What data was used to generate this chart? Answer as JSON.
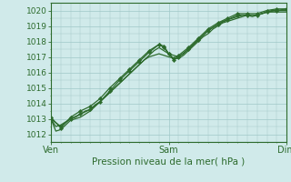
{
  "title": "",
  "xlabel": "Pression niveau de la mer( hPa )",
  "bg_color": "#d0eaea",
  "grid_color": "#a0c8c8",
  "line_color": "#2d6b2d",
  "marker_color": "#2d6b2d",
  "ylim": [
    1011.5,
    1020.5
  ],
  "xlim": [
    0,
    48
  ],
  "yticks": [
    1012,
    1013,
    1014,
    1015,
    1016,
    1017,
    1018,
    1019,
    1020
  ],
  "xtick_positions": [
    0,
    24,
    48
  ],
  "xtick_labels": [
    "Ven",
    "Sam",
    "Dim"
  ],
  "line1_x": [
    0,
    1,
    2,
    3,
    4,
    5,
    6,
    7,
    8,
    9,
    10,
    11,
    12,
    13,
    14,
    15,
    16,
    17,
    18,
    19,
    20,
    21,
    22,
    23,
    24,
    25,
    26,
    27,
    28,
    29,
    30,
    31,
    32,
    33,
    34,
    35,
    36,
    37,
    38,
    39,
    40,
    41,
    42,
    43,
    44,
    45,
    46,
    47,
    48
  ],
  "line1_y": [
    1013.0,
    1012.5,
    1012.6,
    1012.8,
    1013.0,
    1013.1,
    1013.3,
    1013.5,
    1013.6,
    1013.9,
    1014.1,
    1014.4,
    1014.7,
    1015.0,
    1015.3,
    1015.6,
    1015.9,
    1016.2,
    1016.5,
    1016.8,
    1017.1,
    1017.4,
    1017.6,
    1017.4,
    1017.2,
    1017.1,
    1017.0,
    1017.2,
    1017.5,
    1017.8,
    1018.1,
    1018.4,
    1018.7,
    1018.9,
    1019.1,
    1019.3,
    1019.4,
    1019.5,
    1019.6,
    1019.7,
    1019.7,
    1019.6,
    1019.7,
    1019.8,
    1019.9,
    1020.0,
    1020.0,
    1020.0,
    1020.0
  ],
  "line2_x": [
    0,
    1,
    2,
    3,
    4,
    5,
    6,
    7,
    8,
    9,
    10,
    11,
    12,
    13,
    14,
    15,
    16,
    17,
    18,
    19,
    20,
    21,
    22,
    23,
    24,
    25,
    26,
    27,
    28,
    29,
    30,
    31,
    32,
    33,
    34,
    35,
    36,
    37,
    38,
    39,
    40,
    41,
    42,
    43,
    44,
    45,
    46,
    47,
    48
  ],
  "line2_y": [
    1013.0,
    1012.2,
    1012.3,
    1012.6,
    1012.9,
    1013.0,
    1013.1,
    1013.3,
    1013.5,
    1013.8,
    1014.1,
    1014.4,
    1014.7,
    1015.0,
    1015.3,
    1015.6,
    1015.9,
    1016.2,
    1016.5,
    1016.8,
    1017.0,
    1017.1,
    1017.2,
    1017.1,
    1017.0,
    1016.9,
    1016.9,
    1017.1,
    1017.4,
    1017.7,
    1018.0,
    1018.3,
    1018.5,
    1018.8,
    1019.0,
    1019.2,
    1019.3,
    1019.4,
    1019.5,
    1019.6,
    1019.7,
    1019.7,
    1019.7,
    1019.8,
    1019.9,
    1019.9,
    1019.9,
    1019.9,
    1019.9
  ],
  "line3_x": [
    0,
    2,
    4,
    6,
    8,
    10,
    12,
    14,
    16,
    18,
    20,
    22,
    23,
    24,
    25,
    26,
    28,
    30,
    32,
    34,
    36,
    38,
    40,
    42,
    44,
    46,
    48
  ],
  "line3_y": [
    1013.0,
    1012.5,
    1013.0,
    1013.3,
    1013.6,
    1014.1,
    1014.8,
    1015.5,
    1016.1,
    1016.7,
    1017.3,
    1017.8,
    1017.7,
    1017.2,
    1016.9,
    1017.1,
    1017.6,
    1018.2,
    1018.8,
    1019.2,
    1019.5,
    1019.8,
    1019.8,
    1019.8,
    1020.0,
    1020.1,
    1020.1
  ],
  "line4_x": [
    0,
    2,
    4,
    6,
    8,
    10,
    12,
    14,
    16,
    18,
    20,
    22,
    23,
    24,
    25,
    26,
    28,
    30,
    32,
    34,
    36,
    38,
    40,
    42,
    44,
    46,
    48
  ],
  "line4_y": [
    1013.1,
    1012.4,
    1013.1,
    1013.5,
    1013.8,
    1014.3,
    1015.0,
    1015.6,
    1016.2,
    1016.8,
    1017.4,
    1017.8,
    1017.6,
    1017.2,
    1016.8,
    1017.0,
    1017.5,
    1018.1,
    1018.7,
    1019.1,
    1019.4,
    1019.7,
    1019.7,
    1019.7,
    1019.9,
    1020.0,
    1020.1
  ],
  "ytick_fontsize": 6.5,
  "xtick_fontsize": 7,
  "xlabel_fontsize": 7.5
}
